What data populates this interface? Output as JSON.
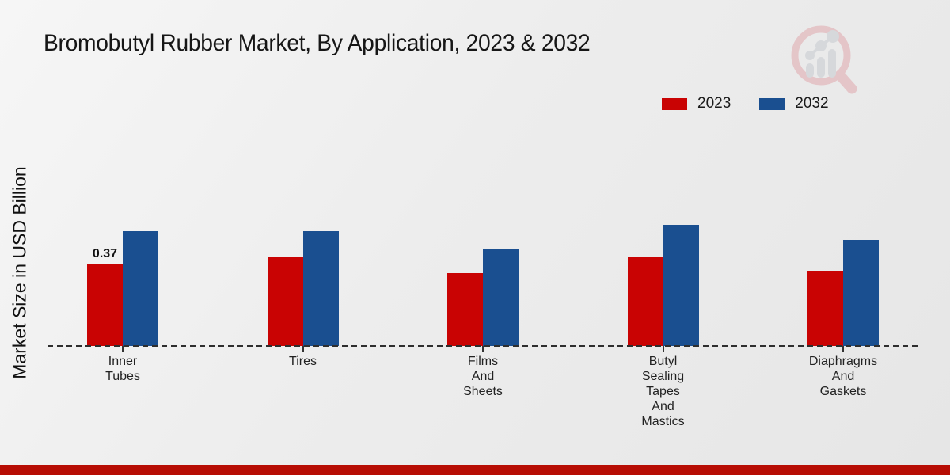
{
  "page": {
    "title": "Bromobutyl Rubber Market, By Application, 2023 & 2032"
  },
  "chart_data": {
    "type": "bar",
    "title": "Bromobutyl Rubber Market, By Application, 2023 & 2032",
    "ylabel": "Market Size in USD Billion",
    "xlabel": "",
    "categories": [
      "Inner Tubes",
      "Tires",
      "Films And Sheets",
      "Butyl Sealing Tapes And Mastics",
      "Diaphragms And Gaskets"
    ],
    "categories_lines": [
      [
        "Inner",
        "Tubes"
      ],
      [
        "Tires"
      ],
      [
        "Films",
        "And",
        "Sheets"
      ],
      [
        "Butyl",
        "Sealing",
        "Tapes",
        "And",
        "Mastics"
      ],
      [
        "Diaphragms",
        "And",
        "Gaskets"
      ]
    ],
    "series": [
      {
        "name": "2023",
        "color": "#c90303",
        "values": [
          0.37,
          0.4,
          0.33,
          0.4,
          0.34
        ]
      },
      {
        "name": "2032",
        "color": "#1a4f90",
        "values": [
          0.52,
          0.52,
          0.44,
          0.55,
          0.48
        ]
      }
    ],
    "bar_label": {
      "series": "2023",
      "category": "Inner Tubes",
      "text": "0.37"
    },
    "baseline_value": 0,
    "grid": false,
    "legend_position": "top-right",
    "ylim": [
      0,
      0.6
    ]
  },
  "colors": {
    "footer": "#b70d04",
    "axis": "#2e2e2e",
    "watermark_pink": "#d9868e",
    "watermark_gray": "#b9bdc4"
  }
}
